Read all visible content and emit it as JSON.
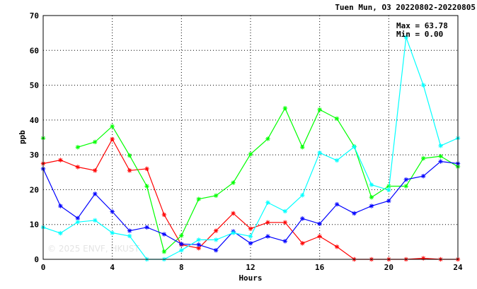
{
  "chart_data": {
    "type": "line",
    "title": "Tuen Mun, O3 20220802-20220805",
    "xlabel": "Hours",
    "ylabel": "ppb",
    "xlim": [
      0,
      24
    ],
    "ylim": [
      0,
      70
    ],
    "xticks": [
      0,
      4,
      8,
      12,
      16,
      20,
      24
    ],
    "yticks": [
      0,
      10,
      20,
      30,
      40,
      50,
      60,
      70
    ],
    "grid": true,
    "stats": {
      "max": "Max = 63.78",
      "min": "Min =  0.00"
    },
    "watermark": "© 2025  ENVF, HKUST",
    "x": [
      0,
      1,
      2,
      3,
      4,
      5,
      6,
      7,
      8,
      9,
      10,
      11,
      12,
      13,
      14,
      15,
      16,
      17,
      18,
      19,
      20,
      21,
      22,
      23,
      24
    ],
    "series": [
      {
        "color": "#ff0000",
        "values": [
          27.5,
          28.5,
          26.5,
          25.5,
          34.5,
          25.5,
          26.0,
          12.8,
          4.2,
          3.2,
          8.2,
          13.2,
          8.8,
          10.6,
          10.6,
          4.6,
          6.6,
          3.6,
          0.0,
          0.0,
          0.0,
          0.0,
          0.3,
          0.0,
          0.0
        ]
      },
      {
        "color": "#00ff00",
        "values": [
          34.8,
          null,
          32.2,
          33.7,
          38.2,
          29.8,
          21.0,
          2.2,
          6.8,
          17.3,
          18.3,
          22.0,
          30.2,
          34.6,
          43.4,
          32.2,
          43.0,
          40.4,
          32.4,
          17.8,
          21.0,
          21.0,
          29.0,
          29.6,
          26.6
        ]
      },
      {
        "color": "#0000ff",
        "values": [
          26.0,
          15.3,
          11.8,
          18.8,
          13.7,
          8.2,
          9.2,
          7.2,
          4.4,
          4.2,
          2.6,
          8.0,
          4.6,
          6.6,
          5.2,
          11.7,
          10.2,
          15.8,
          13.2,
          15.3,
          16.8,
          22.9,
          23.9,
          28.1,
          27.5
        ]
      },
      {
        "color": "#00ffff",
        "values": [
          9.2,
          7.5,
          10.7,
          11.2,
          7.6,
          6.7,
          0.0,
          0.0,
          2.6,
          5.6,
          5.6,
          7.6,
          6.6,
          16.3,
          13.8,
          18.4,
          30.6,
          28.4,
          32.3,
          21.4,
          19.9,
          63.78,
          50.0,
          32.6,
          34.8
        ]
      }
    ]
  }
}
